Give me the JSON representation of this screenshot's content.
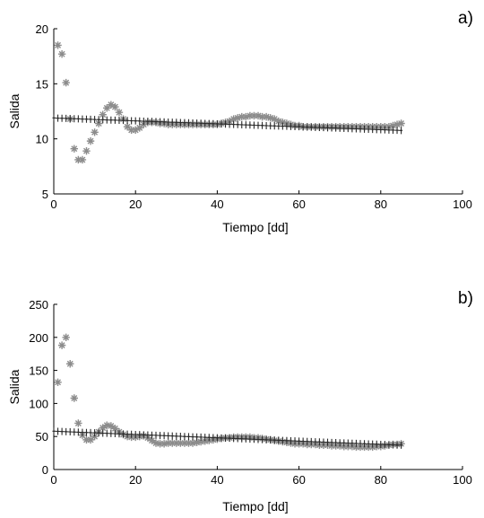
{
  "chart_data": [
    {
      "type": "scatter",
      "panel_label": "a)",
      "xlabel": "Tiempo [dd]",
      "ylabel": "Salida",
      "xlim": [
        0,
        100
      ],
      "ylim": [
        5,
        20
      ],
      "xticks": [
        0,
        20,
        40,
        60,
        80,
        100
      ],
      "yticks": [
        5,
        10,
        15,
        20
      ],
      "grid": false,
      "series": [
        {
          "marker": "star",
          "color": "#8c8c8c",
          "x": [
            1,
            2,
            3,
            4,
            5,
            6,
            7,
            8,
            9,
            10,
            11,
            12,
            13,
            14,
            15,
            16,
            17,
            18,
            19,
            20,
            21,
            22,
            23,
            24,
            25,
            26,
            27,
            28,
            29,
            30,
            31,
            32,
            33,
            34,
            35,
            36,
            37,
            38,
            39,
            40,
            41,
            42,
            43,
            44,
            45,
            46,
            47,
            48,
            49,
            50,
            51,
            52,
            53,
            54,
            55,
            56,
            57,
            58,
            59,
            60,
            61,
            62,
            63,
            64,
            65,
            66,
            67,
            68,
            69,
            70,
            71,
            72,
            73,
            74,
            75,
            76,
            77,
            78,
            79,
            80,
            81,
            82,
            83,
            84,
            85
          ],
          "y": [
            18.5,
            17.7,
            15.1,
            11.8,
            9.1,
            8.1,
            8.1,
            8.9,
            9.8,
            10.6,
            11.4,
            12.2,
            12.8,
            13.1,
            12.9,
            12.4,
            11.8,
            11.1,
            10.8,
            10.8,
            11.0,
            11.3,
            11.5,
            11.5,
            11.5,
            11.4,
            11.4,
            11.3,
            11.3,
            11.3,
            11.3,
            11.3,
            11.3,
            11.3,
            11.3,
            11.3,
            11.3,
            11.3,
            11.3,
            11.3,
            11.4,
            11.5,
            11.6,
            11.8,
            11.9,
            12.0,
            12.0,
            12.1,
            12.1,
            12.1,
            12.0,
            12.0,
            11.9,
            11.8,
            11.6,
            11.5,
            11.4,
            11.3,
            11.2,
            11.2,
            11.1,
            11.1,
            11.1,
            11.1,
            11.1,
            11.1,
            11.1,
            11.1,
            11.1,
            11.1,
            11.1,
            11.1,
            11.1,
            11.1,
            11.1,
            11.1,
            11.1,
            11.1,
            11.1,
            11.1,
            11.1,
            11.1,
            11.2,
            11.3,
            11.4
          ]
        },
        {
          "marker": "plus",
          "color": "#2a2a2a",
          "x": [
            0,
            1,
            2,
            3,
            4,
            5,
            6,
            7,
            8,
            9,
            10,
            11,
            12,
            13,
            14,
            15,
            16,
            17,
            18,
            19,
            20,
            21,
            22,
            23,
            24,
            25,
            26,
            27,
            28,
            29,
            30,
            31,
            32,
            33,
            34,
            35,
            36,
            37,
            38,
            39,
            40,
            41,
            42,
            43,
            44,
            45,
            46,
            47,
            48,
            49,
            50,
            51,
            52,
            53,
            54,
            55,
            56,
            57,
            58,
            59,
            60,
            61,
            62,
            63,
            64,
            65,
            66,
            67,
            68,
            69,
            70,
            71,
            72,
            73,
            74,
            75,
            76,
            77,
            78,
            79,
            80,
            81,
            82,
            83,
            84,
            85
          ],
          "y": [
            11.9,
            11.88,
            11.87,
            11.86,
            11.84,
            11.83,
            11.82,
            11.8,
            11.79,
            11.78,
            11.76,
            11.75,
            11.74,
            11.72,
            11.71,
            11.7,
            11.68,
            11.67,
            11.66,
            11.64,
            11.63,
            11.62,
            11.6,
            11.59,
            11.58,
            11.56,
            11.55,
            11.54,
            11.52,
            11.51,
            11.5,
            11.48,
            11.47,
            11.46,
            11.44,
            11.43,
            11.42,
            11.4,
            11.39,
            11.38,
            11.36,
            11.35,
            11.34,
            11.32,
            11.31,
            11.3,
            11.28,
            11.27,
            11.26,
            11.24,
            11.23,
            11.22,
            11.2,
            11.19,
            11.18,
            11.16,
            11.15,
            11.14,
            11.12,
            11.11,
            11.1,
            11.08,
            11.07,
            11.06,
            11.04,
            11.03,
            11.02,
            11.0,
            10.99,
            10.98,
            10.96,
            10.95,
            10.94,
            10.92,
            10.91,
            10.9,
            10.88,
            10.87,
            10.86,
            10.84,
            10.83,
            10.82,
            10.8,
            10.79,
            10.78,
            10.76
          ]
        }
      ]
    },
    {
      "type": "scatter",
      "panel_label": "b)",
      "xlabel": "Tiempo [dd]",
      "ylabel": "Salida",
      "xlim": [
        0,
        100
      ],
      "ylim": [
        0,
        250
      ],
      "xticks": [
        0,
        20,
        40,
        60,
        80,
        100
      ],
      "yticks": [
        0,
        50,
        100,
        150,
        200,
        250
      ],
      "grid": false,
      "series": [
        {
          "marker": "star",
          "color": "#8c8c8c",
          "x": [
            1,
            2,
            3,
            4,
            5,
            6,
            7,
            8,
            9,
            10,
            11,
            12,
            13,
            14,
            15,
            16,
            17,
            18,
            19,
            20,
            21,
            22,
            23,
            24,
            25,
            26,
            27,
            28,
            29,
            30,
            31,
            32,
            33,
            34,
            35,
            36,
            37,
            38,
            39,
            40,
            41,
            42,
            43,
            44,
            45,
            46,
            47,
            48,
            49,
            50,
            51,
            52,
            53,
            54,
            55,
            56,
            57,
            58,
            59,
            60,
            61,
            62,
            63,
            64,
            65,
            66,
            67,
            68,
            69,
            70,
            71,
            72,
            73,
            74,
            75,
            76,
            77,
            78,
            79,
            80,
            81,
            82,
            83,
            84,
            85
          ],
          "y": [
            132,
            188,
            200,
            160,
            108,
            70,
            52,
            45,
            45,
            50,
            57,
            63,
            67,
            66,
            62,
            57,
            53,
            50,
            49,
            49,
            50,
            51,
            48,
            44,
            40,
            39,
            39,
            40,
            40,
            40,
            40,
            40,
            40,
            40,
            41,
            42,
            43,
            44,
            45,
            46,
            47,
            48,
            48,
            49,
            49,
            49,
            49,
            49,
            48,
            48,
            47,
            46,
            45,
            44,
            43,
            42,
            41,
            40,
            39,
            39,
            39,
            38,
            38,
            38,
            37,
            37,
            37,
            36,
            36,
            36,
            35,
            35,
            35,
            34,
            34,
            34,
            34,
            34,
            35,
            35,
            36,
            37,
            38,
            38,
            39
          ]
        },
        {
          "marker": "plus",
          "color": "#2a2a2a",
          "x": [
            0,
            1,
            2,
            3,
            4,
            5,
            6,
            7,
            8,
            9,
            10,
            11,
            12,
            13,
            14,
            15,
            16,
            17,
            18,
            19,
            20,
            21,
            22,
            23,
            24,
            25,
            26,
            27,
            28,
            29,
            30,
            31,
            32,
            33,
            34,
            35,
            36,
            37,
            38,
            39,
            40,
            41,
            42,
            43,
            44,
            45,
            46,
            47,
            48,
            49,
            50,
            51,
            52,
            53,
            54,
            55,
            56,
            57,
            58,
            59,
            60,
            61,
            62,
            63,
            64,
            65,
            66,
            67,
            68,
            69,
            70,
            71,
            72,
            73,
            74,
            75,
            76,
            77,
            78,
            79,
            80,
            81,
            82,
            83,
            84,
            85
          ],
          "y": [
            58,
            57.8,
            57.5,
            57.3,
            57.0,
            56.8,
            56.5,
            56.3,
            56.0,
            55.8,
            55.5,
            55.3,
            55.0,
            54.8,
            54.5,
            54.3,
            54.0,
            53.8,
            53.5,
            53.3,
            53.0,
            52.8,
            52.5,
            52.3,
            52.0,
            51.8,
            51.5,
            51.3,
            51.0,
            50.8,
            50.5,
            50.3,
            50.0,
            49.8,
            49.5,
            49.3,
            49.0,
            48.8,
            48.5,
            48.3,
            48.0,
            47.8,
            47.5,
            47.3,
            47.0,
            46.8,
            46.5,
            46.3,
            46.0,
            45.8,
            45.5,
            45.3,
            45.0,
            44.8,
            44.5,
            44.3,
            44.0,
            43.8,
            43.5,
            43.3,
            43.0,
            42.8,
            42.5,
            42.3,
            42.0,
            41.8,
            41.5,
            41.3,
            41.0,
            40.8,
            40.5,
            40.3,
            40.0,
            39.8,
            39.5,
            39.3,
            39.0,
            38.8,
            38.5,
            38.3,
            38.0,
            37.8,
            37.5,
            37.3,
            37.0,
            36.8
          ]
        }
      ]
    }
  ]
}
